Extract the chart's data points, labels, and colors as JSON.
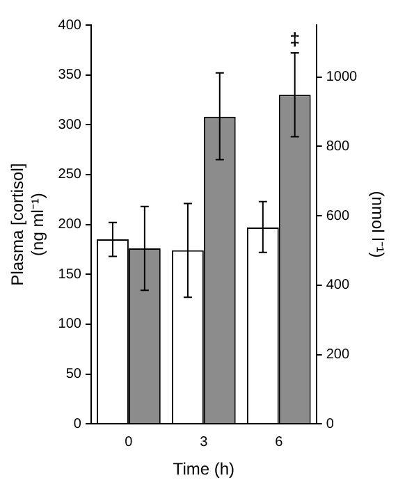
{
  "chart_data": {
    "type": "bar",
    "xlabel": "Time (h)",
    "ylabel": "Plasma [cortisol]\n(ng ml⁻¹)",
    "y2label": "(nmol l⁻¹)",
    "categories": [
      "0",
      "3",
      "6"
    ],
    "series": [
      {
        "color": "#ffffff",
        "values": [
          185,
          174,
          197
        ],
        "errors": [
          [
            168,
            202
          ],
          [
            127,
            221
          ],
          [
            172,
            223
          ]
        ]
      },
      {
        "color": "#8c8c8c",
        "values": [
          176,
          308,
          330
        ],
        "errors": [
          [
            134,
            218
          ],
          [
            265,
            352
          ],
          [
            288,
            372
          ]
        ]
      }
    ],
    "ylim": [
      0,
      400
    ],
    "yticks": [
      0,
      50,
      100,
      150,
      200,
      250,
      300,
      350,
      400
    ],
    "y2lim": [
      0,
      1150
    ],
    "y2ticks": [
      0,
      200,
      400,
      600,
      800,
      1000
    ],
    "annotations": [
      "‡"
    ],
    "grid": false,
    "legend": false
  }
}
